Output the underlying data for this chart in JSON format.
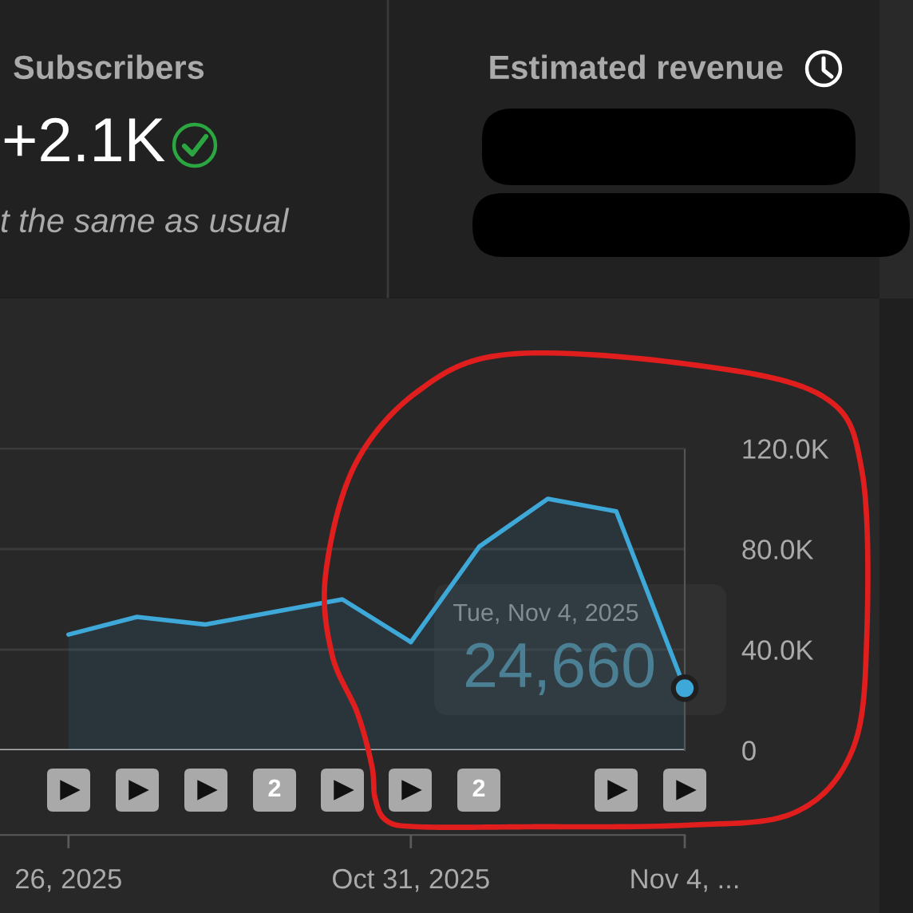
{
  "chart_data": {
    "type": "area",
    "x": [
      "2025-10-26",
      "2025-10-27",
      "2025-10-28",
      "2025-10-29",
      "2025-10-30",
      "2025-10-31",
      "2025-11-01",
      "2025-11-02",
      "2025-11-03",
      "2025-11-04"
    ],
    "series": [
      {
        "color": "#3ea8d8",
        "values": [
          46000,
          53000,
          50000,
          55000,
          60000,
          43000,
          81000,
          100000,
          95000,
          24660
        ],
        "value_labels": [
          null,
          null,
          null,
          null,
          null,
          null,
          null,
          null,
          null,
          "24,660"
        ]
      },
      {
        "type": "scatter",
        "color": "#3ea8d8",
        "marker": "circle",
        "x": [
          "2025-11-04"
        ],
        "values": [
          24660
        ]
      }
    ],
    "xlim": [
      "2025-10-25",
      "2025-11-04"
    ],
    "xticks": [
      {
        "value": "2025-10-26",
        "label": "26, 2025"
      },
      {
        "value": "2025-10-31",
        "label": "Oct 31, 2025"
      },
      {
        "value": "2025-11-04",
        "label": "Nov 4, ..."
      }
    ],
    "ylim": [
      0,
      120000
    ],
    "yticks": [
      0,
      {
        "value": 40000,
        "label": "40.0K"
      },
      {
        "value": 80000,
        "label": "80.0K"
      },
      {
        "value": 120000,
        "label": "120.0K"
      }
    ],
    "grid": "y",
    "annotations": [
      "Subscribers",
      "+2.1K",
      "t the same as usual",
      "Estimated revenue",
      "Tue, Nov 4, 2025",
      "▶",
      "▶",
      "▶",
      "2",
      "▶",
      "▶",
      "2",
      "▶",
      "▶"
    ]
  }
}
